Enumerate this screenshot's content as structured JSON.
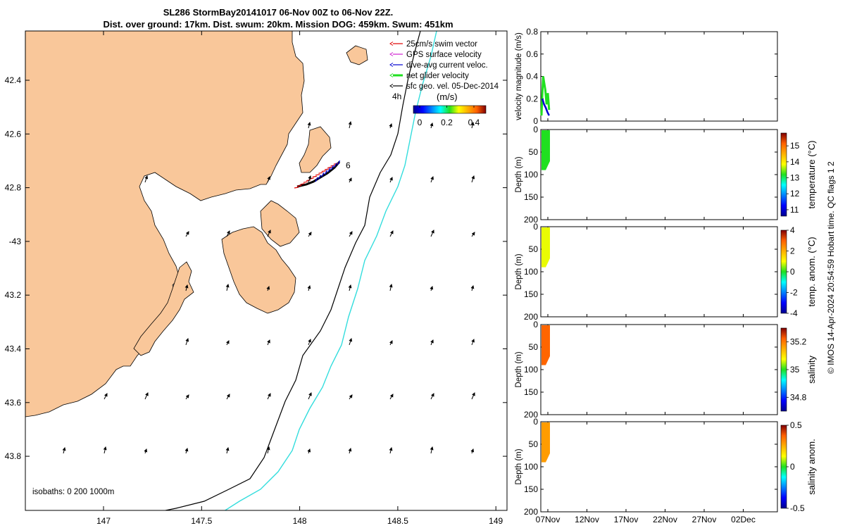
{
  "header": {
    "title_line1": "SL286 StormBay20141017 06-Nov 00Z to 06-Nov 22Z.",
    "title_line2": "Dist. over ground: 17km. Dist. swum: 20km. Mission DOG: 459km. Swum: 451km"
  },
  "map": {
    "lon_ticks": [
      "147",
      "147.5",
      "148",
      "148.5",
      "149"
    ],
    "lat_ticks": [
      "42.4",
      "42.6",
      "42.8",
      "-43",
      "43.2",
      "43.4",
      "43.6",
      "43.8"
    ],
    "isobaths_label": "isobaths: 0   200  1000m",
    "glider_label": "6",
    "hours_label": "4h",
    "colorbar_unit": "(m/s)",
    "colorbar_ticks": [
      "0",
      "0.2",
      "0.4"
    ],
    "legend": [
      {
        "label": "25cm/s swim vector",
        "color": "#e00000"
      },
      {
        "label": "GPS surface velocity",
        "color": "#d020d0"
      },
      {
        "label": "dive-avg current veloc.",
        "color": "#0000d0"
      },
      {
        "label": "net glider velocity",
        "color": "#20e020"
      },
      {
        "label": "sfc geo. vel. 05-Dec-2014",
        "color": "#000000"
      }
    ],
    "land_color": "#f9c79a",
    "isobath_200_color": "#000000",
    "isobath_1000_color": "#33dddd"
  },
  "chart_data": [
    {
      "type": "line",
      "panel": "velocity",
      "ylabel": "velocity magnitude (m/s)",
      "ylim": [
        0,
        0.8
      ],
      "yticks": [
        "0",
        "0.2",
        "0.4",
        "0.6",
        "0.8"
      ],
      "series": [
        {
          "name": "net glider velocity",
          "color": "#20e020",
          "x": [
            0.0,
            0.1,
            0.2,
            0.3,
            0.45,
            0.6,
            0.75,
            0.9
          ],
          "values": [
            0.05,
            0.25,
            0.4,
            0.35,
            0.28,
            0.15,
            0.25,
            0.1
          ]
        },
        {
          "name": "dive-avg current veloc.",
          "color": "#0000d0",
          "x": [
            0.1,
            0.3,
            0.5,
            0.7,
            0.9
          ],
          "values": [
            0.2,
            0.15,
            0.12,
            0.08,
            0.05
          ]
        }
      ]
    },
    {
      "type": "heatmap",
      "panel": "temperature",
      "ylabel": "Depth (m)",
      "colorbar_label": "temperature (°C)",
      "ylim": [
        200,
        0
      ],
      "yticks": [
        "0",
        "50",
        "100",
        "150",
        "200"
      ],
      "colorbar_ticks": [
        "11",
        "12",
        "13",
        "14",
        "15"
      ],
      "clim": [
        10.6,
        15.8
      ],
      "fill_value": 13.2,
      "max_depth": 90
    },
    {
      "type": "heatmap",
      "panel": "temp-anom",
      "ylabel": "Depth (m)",
      "colorbar_label": "temp. anom. (°C)",
      "ylim": [
        200,
        0
      ],
      "yticks": [
        "0",
        "50",
        "100",
        "150",
        "200"
      ],
      "colorbar_ticks": [
        "4",
        "2",
        "0",
        "-2",
        "-4"
      ],
      "clim": [
        -4,
        4
      ],
      "fill_value": 0.9,
      "max_depth": 90
    },
    {
      "type": "heatmap",
      "panel": "salinity",
      "ylabel": "Depth (m)",
      "colorbar_label": "salinity",
      "ylim": [
        200,
        0
      ],
      "yticks": [
        "0",
        "50",
        "100",
        "150",
        "200"
      ],
      "colorbar_ticks": [
        "35.2",
        "35",
        "34.8"
      ],
      "clim": [
        34.7,
        35.3
      ],
      "fill_value": 35.22,
      "max_depth": 90
    },
    {
      "type": "heatmap",
      "panel": "salinity-anom",
      "ylabel": "Depth (m)",
      "colorbar_label": "salinity anom.",
      "ylim": [
        200,
        0
      ],
      "yticks": [
        "0",
        "50",
        "100",
        "150",
        "200"
      ],
      "colorbar_ticks": [
        "0.5",
        "0",
        "-0.5"
      ],
      "clim": [
        -0.5,
        0.5
      ],
      "fill_value": 0.28,
      "max_depth": 90
    }
  ],
  "time_axis": {
    "ticks": [
      "07Nov",
      "12Nov",
      "17Nov",
      "22Nov",
      "27Nov",
      "02Dec"
    ]
  },
  "side_note": "© IMOS 14-Apr-2024 20:54:59 Hobart time. QC flags 1  2"
}
